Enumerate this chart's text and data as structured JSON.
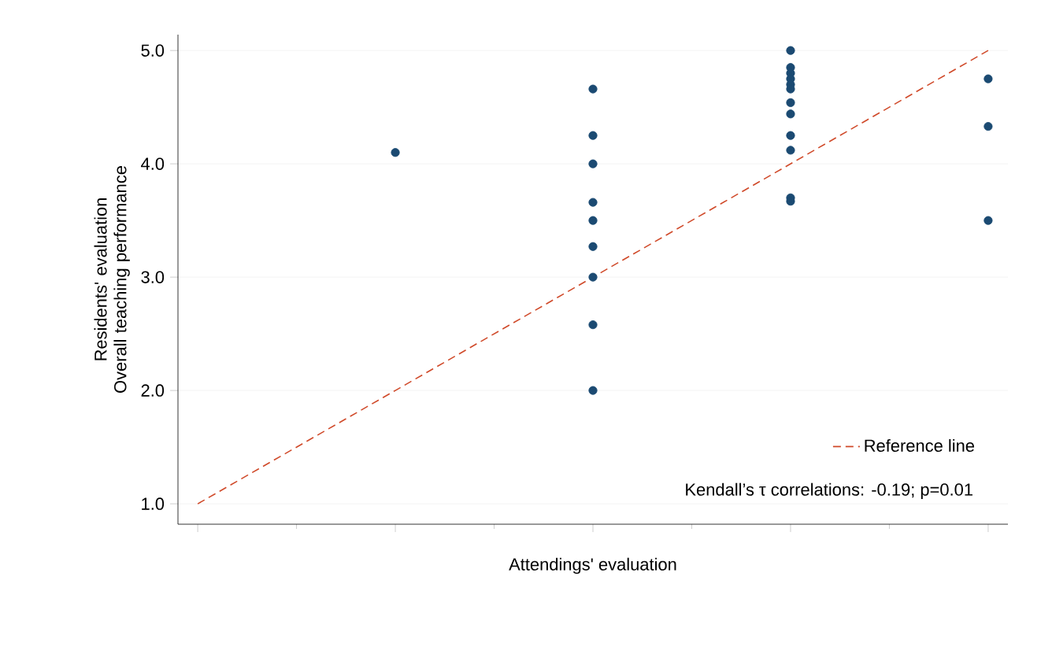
{
  "chart_data": {
    "type": "scatter",
    "xlabel": "Attendings' evaluation",
    "ylabel": "Residents' evaluation Overall teaching performance",
    "categories": [
      null,
      null,
      null,
      null,
      null
    ],
    "ylim": [
      0.82,
      5.14
    ],
    "yticks": [
      {
        "value": 1,
        "label": "1.0"
      },
      {
        "value": 2,
        "label": "2.0"
      },
      {
        "value": 3,
        "label": "3.0"
      },
      {
        "value": 4,
        "label": "4.0"
      },
      {
        "value": 5,
        "label": "5.0"
      }
    ],
    "grid": "y",
    "legend": "bottom right",
    "marker": "circle",
    "series": [
      {
        "color": "#1b4a72",
        "values": [
          null,
          4.1,
          4.66,
          5.0,
          4.75
        ]
      },
      {
        "color": "#1b4a72",
        "values": [
          null,
          null,
          4.25,
          4.85,
          4.33
        ]
      },
      {
        "color": "#1b4a72",
        "values": [
          null,
          null,
          4.0,
          4.8,
          3.5
        ]
      },
      {
        "color": "#1b4a72",
        "values": [
          null,
          null,
          3.66,
          4.75,
          null
        ]
      },
      {
        "color": "#1b4a72",
        "values": [
          null,
          null,
          3.5,
          4.7,
          null
        ]
      },
      {
        "color": "#1b4a72",
        "values": [
          null,
          null,
          3.27,
          4.66,
          null
        ]
      },
      {
        "color": "#1b4a72",
        "values": [
          null,
          null,
          3.0,
          4.54,
          null
        ]
      },
      {
        "color": "#1b4a72",
        "values": [
          null,
          null,
          2.58,
          4.44,
          null
        ]
      },
      {
        "color": "#1b4a72",
        "values": [
          null,
          null,
          2.0,
          4.25,
          null
        ]
      },
      {
        "color": "#1b4a72",
        "values": [
          null,
          null,
          null,
          4.12,
          null
        ]
      },
      {
        "color": "#1b4a72",
        "values": [
          null,
          null,
          null,
          3.7,
          null
        ]
      },
      {
        "color": "#1b4a72",
        "values": [
          null,
          null,
          null,
          3.67,
          null
        ]
      },
      {
        "type": "line",
        "name": "Reference line",
        "color": "#d04a2a",
        "line_style": "dashed",
        "marker": "none",
        "values": [
          1,
          2,
          3,
          4,
          5
        ]
      }
    ],
    "annotations": [
      "Kendall’s τ correlations: -0.19; p=0.01"
    ]
  }
}
